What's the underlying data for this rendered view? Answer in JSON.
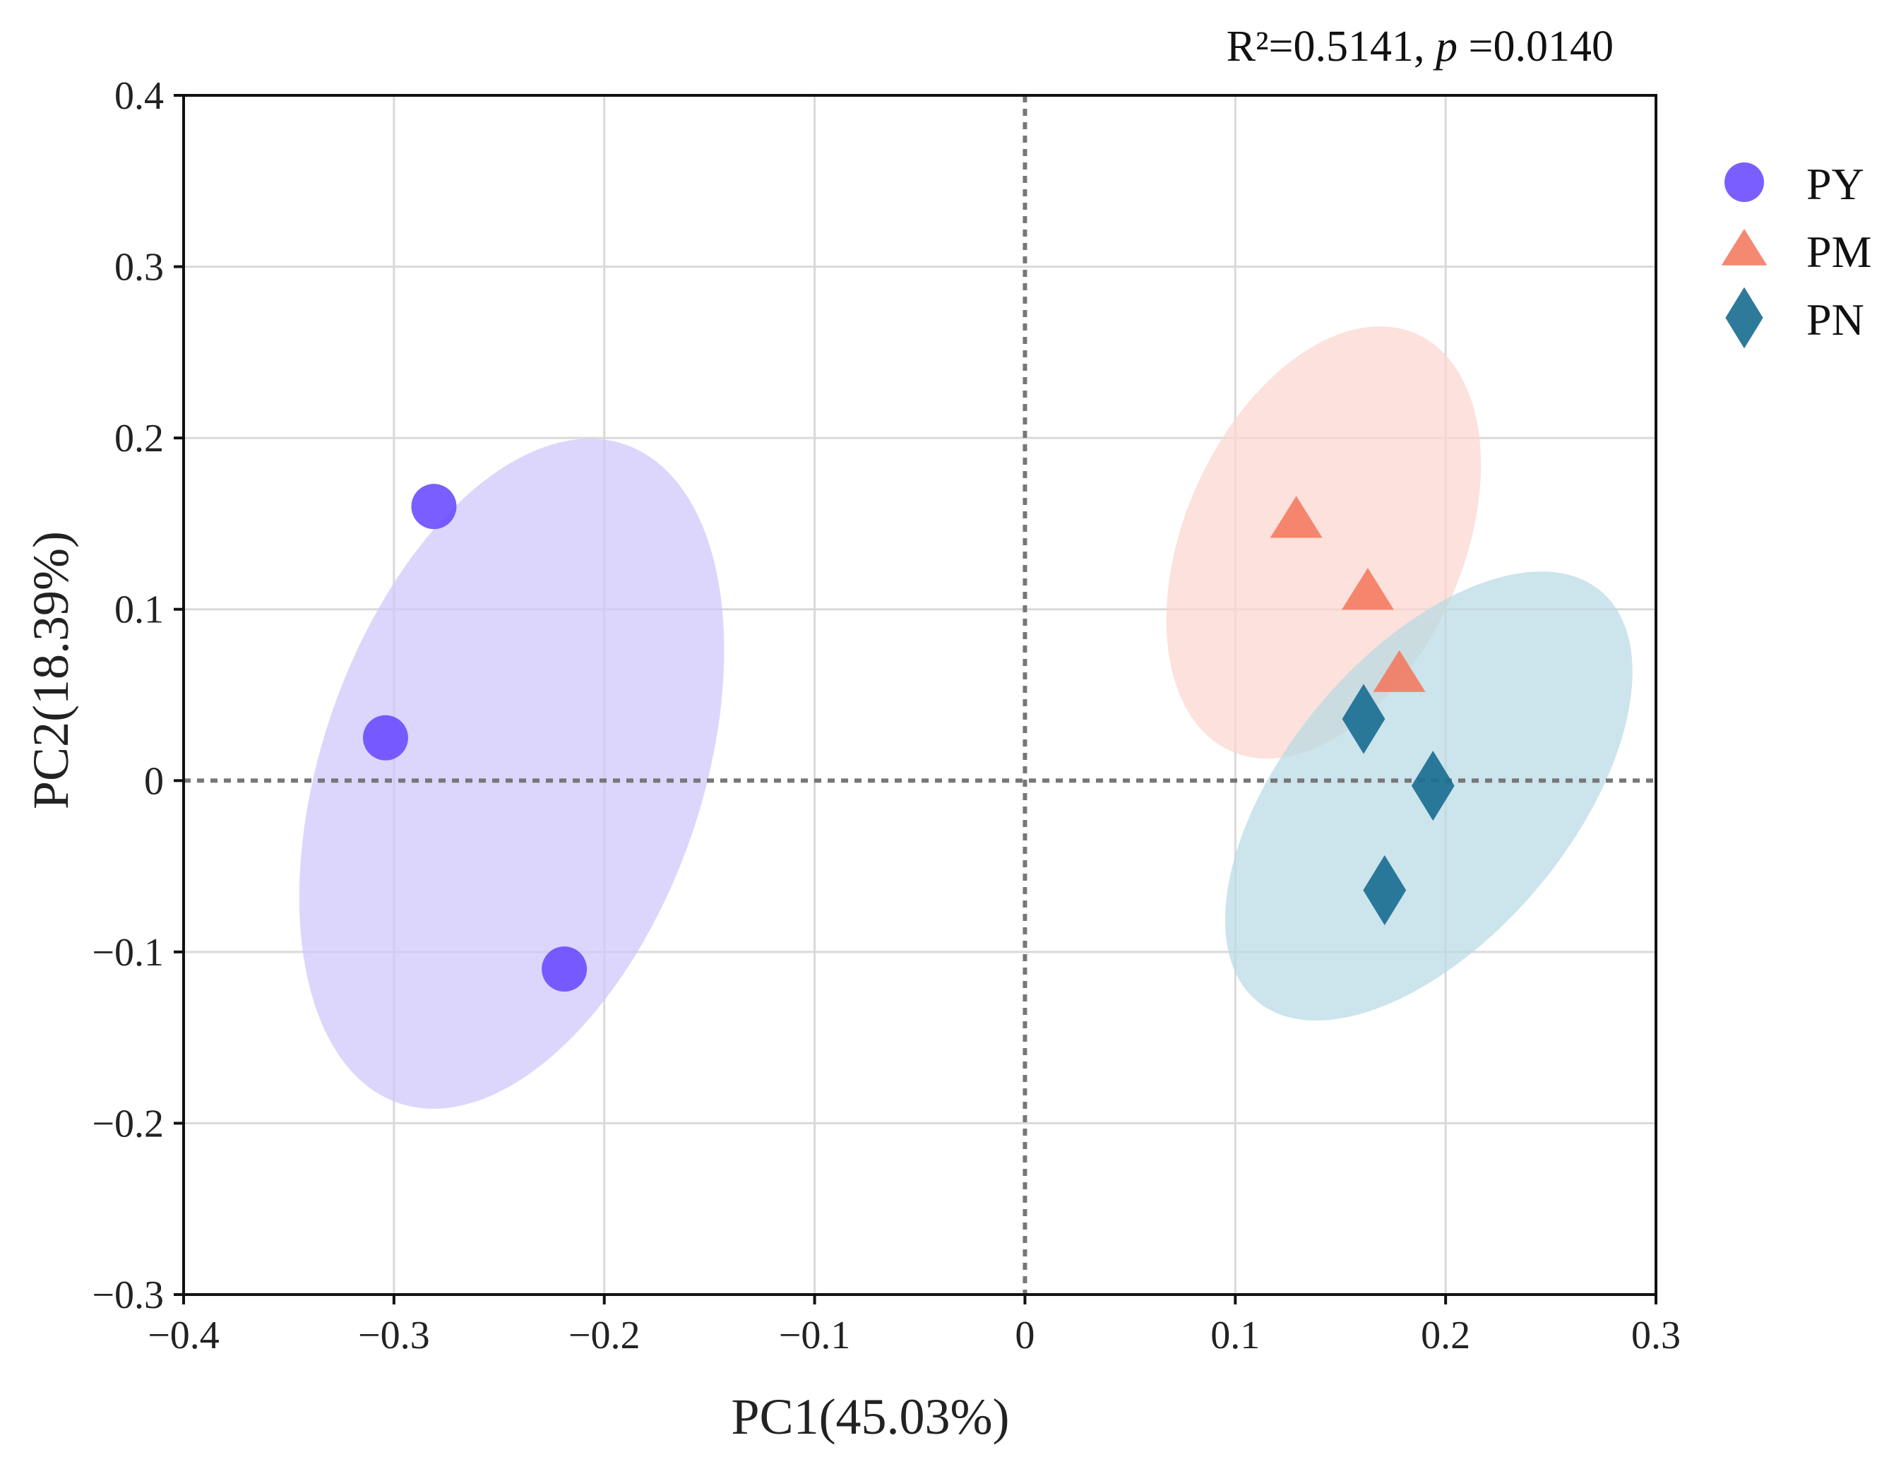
{
  "chart_data": {
    "type": "scatter",
    "title": "",
    "statistic": {
      "r2_label": "R²=0.5141, ",
      "p_label": "p",
      "p_value": " =0.0140"
    },
    "xlabel": "PC1(45.03%)",
    "ylabel": "PC2(18.39%)",
    "xlim": [
      -0.4,
      0.3
    ],
    "ylim": [
      -0.3,
      0.4
    ],
    "xticks": [
      -0.4,
      -0.3,
      -0.2,
      -0.1,
      0,
      0.1,
      0.2,
      0.3
    ],
    "xtick_labels": [
      "−0.4",
      "−0.3",
      "−0.2",
      "−0.1",
      "0",
      "0.1",
      "0.2",
      "0.3"
    ],
    "yticks": [
      -0.3,
      -0.2,
      -0.1,
      0,
      0.1,
      0.2,
      0.3,
      0.4
    ],
    "ytick_labels": [
      "−0.3",
      "−0.2",
      "−0.1",
      "0",
      "0.1",
      "0.2",
      "0.3",
      "0.4"
    ],
    "grid": true,
    "reference_lines": {
      "x": 0,
      "y": 0
    },
    "legend_position": "right",
    "series": [
      {
        "name": "PY",
        "marker": "circle",
        "color": "#6b4cff",
        "ellipse_color": "#cfc6fb",
        "points": [
          [
            -0.281,
            0.16
          ],
          [
            -0.304,
            0.025
          ],
          [
            -0.219,
            -0.11
          ]
        ],
        "ellipse": {
          "cx": -0.244,
          "cy": 0.004,
          "rx": 0.198,
          "ry": 0.092,
          "angle_deg": 71
        }
      },
      {
        "name": "PM",
        "marker": "triangle",
        "color": "#f4775d",
        "ellipse_color": "#fbd6ce",
        "points": [
          [
            0.129,
            0.152
          ],
          [
            0.163,
            0.11
          ],
          [
            0.178,
            0.062
          ]
        ],
        "ellipse": {
          "cx": 0.142,
          "cy": 0.139,
          "rx": 0.128,
          "ry": 0.068,
          "angle_deg": 66
        }
      },
      {
        "name": "PN",
        "marker": "diamond",
        "color": "#1b6f92",
        "ellipse_color": "#b9d9e3",
        "points": [
          [
            0.161,
            0.036
          ],
          [
            0.194,
            -0.003
          ],
          [
            0.171,
            -0.064
          ]
        ],
        "ellipse": {
          "cx": 0.192,
          "cy": -0.009,
          "rx": 0.142,
          "ry": 0.073,
          "angle_deg": 50
        }
      }
    ]
  }
}
